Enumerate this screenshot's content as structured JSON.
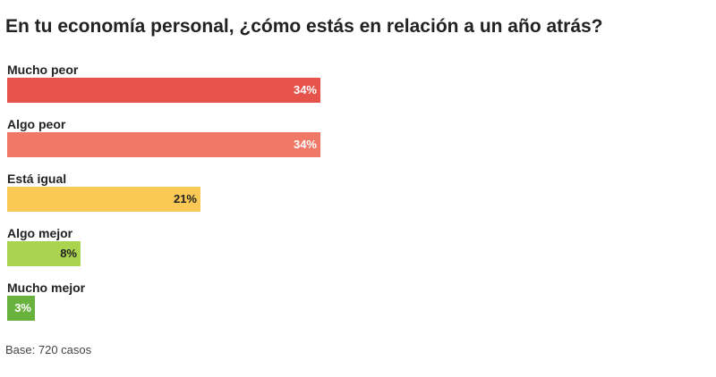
{
  "title": "En tu economía personal, ¿cómo estás en relación a un año atrás?",
  "footnote": "Base: 720 casos",
  "chart_data": {
    "type": "bar",
    "orientation": "horizontal",
    "categories": [
      "Mucho peor",
      "Algo peor",
      "Está igual",
      "Algo mejor",
      "Mucho mejor"
    ],
    "values": [
      34,
      34,
      21,
      8,
      3
    ],
    "value_labels": [
      "34%",
      "34%",
      "21%",
      "8%",
      "3%"
    ],
    "colors": [
      "#e5534b",
      "#ef7866",
      "#fac955",
      "#aad450",
      "#69b23e"
    ],
    "label_colors": [
      "#ffffff",
      "#ffffff",
      "#222222",
      "#222222",
      "#ffffff"
    ],
    "xlim": [
      0,
      100
    ],
    "grid": false
  }
}
